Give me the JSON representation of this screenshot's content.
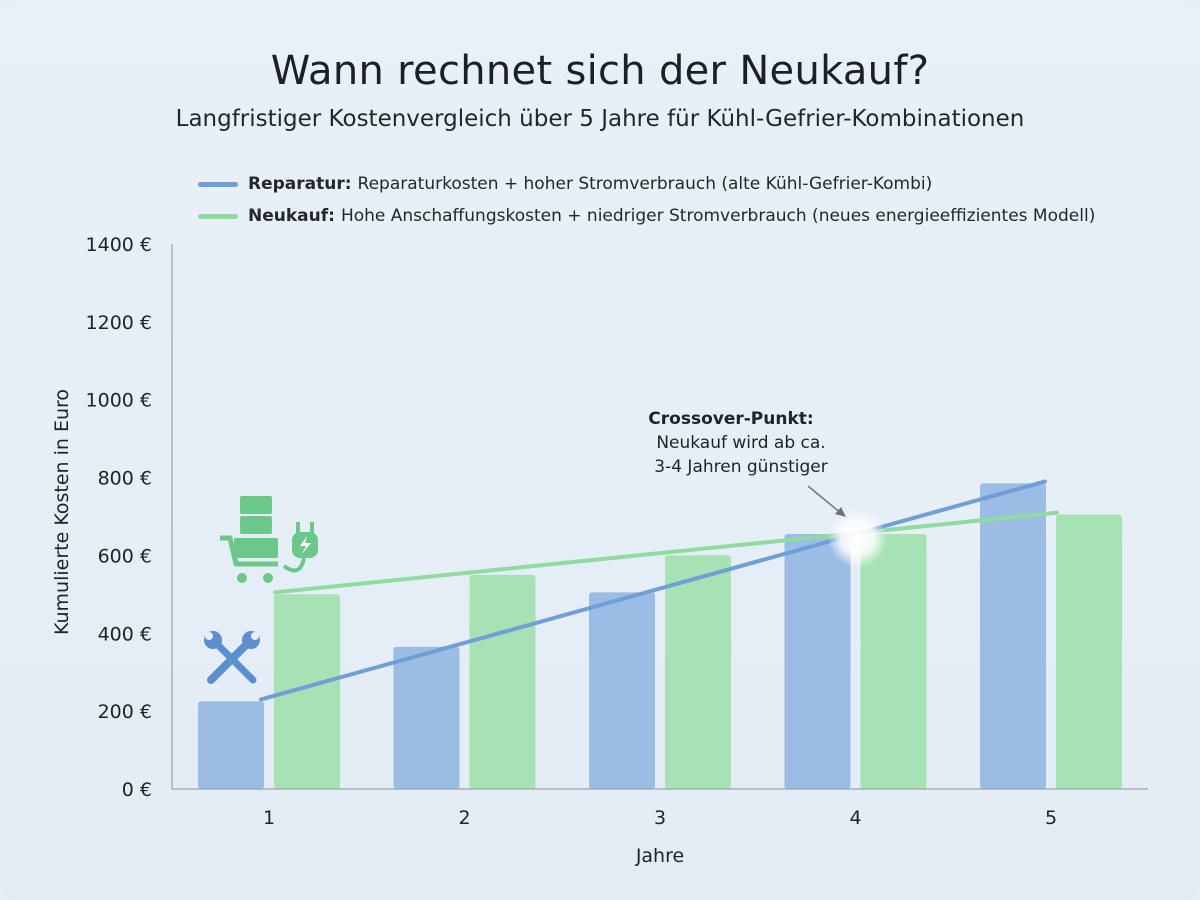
{
  "header": {
    "title": "Wann rechnet sich der Neukauf?",
    "subtitle": "Langfristiger Kostenvergleich über 5 Jahre für Kühl-Gefrier-Kombinationen"
  },
  "legend": {
    "items": [
      {
        "name": "Reparatur:",
        "description": "Reparaturkosten + hoher Stromverbrauch (alte Kühl-Gefrier-Kombi)",
        "color": "#6f9fd6"
      },
      {
        "name": "Neukauf:",
        "description": "Hohe Anschaffungskosten + niedriger Stromverbrauch (neues energieeffizientes Modell)",
        "color": "#8fdca0"
      }
    ]
  },
  "annotation": {
    "title": "Crossover-Punkt:",
    "line1": "Neukauf wird ab ca.",
    "line2": "3-4 Jahren günstiger"
  },
  "icons": {
    "reparatur": "wrench-screwdriver-icon",
    "neukauf": "fridge-cart-plug-icon"
  },
  "chart_data": {
    "type": "bar",
    "title": "Wann rechnet sich der Neukauf?",
    "subtitle": "Langfristiger Kostenvergleich über 5 Jahre für Kühl-Gefrier-Kombinationen",
    "xlabel": "Jahre",
    "ylabel": "Kumulierte Kosten in Euro",
    "categories": [
      "1",
      "2",
      "3",
      "4",
      "5"
    ],
    "ylim": [
      0,
      1400
    ],
    "yticks": [
      0,
      200,
      400,
      600,
      800,
      1000,
      1200,
      1400
    ],
    "ytick_labels": [
      "0 €",
      "200 €",
      "400 €",
      "600 €",
      "800 €",
      "1000 €",
      "1200 €",
      "1400 €"
    ],
    "grid": false,
    "legend_position": "top-left",
    "series": [
      {
        "name": "Reparatur",
        "values": [
          225,
          365,
          505,
          655,
          785
        ],
        "color": "#9bbce4",
        "trend_line": {
          "start": 230,
          "end": 790,
          "color": "#6f9fd6"
        }
      },
      {
        "name": "Neukauf",
        "values": [
          500,
          550,
          600,
          655,
          705
        ],
        "color": "#a6e2b4",
        "trend_line": {
          "start": 505,
          "end": 710,
          "color": "#8fdca0"
        }
      }
    ],
    "crossover": {
      "x": "4",
      "y": 655
    }
  }
}
